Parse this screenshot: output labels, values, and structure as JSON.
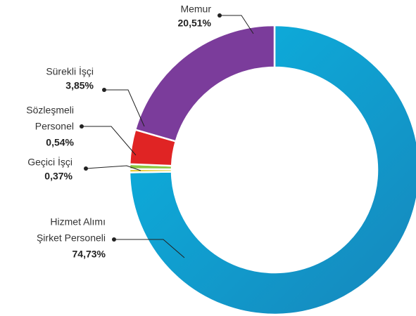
{
  "chart_data": {
    "type": "donut",
    "categories": [
      [
        "Hizmet Alımı",
        "Şirket Personeli"
      ],
      [
        "Geçici İşçi"
      ],
      [
        "Sözleşmeli",
        "Personel"
      ],
      [
        "Sürekli İşçi"
      ],
      [
        "Memur"
      ]
    ],
    "values": [
      74.73,
      0.37,
      0.54,
      3.85,
      20.51
    ],
    "value_labels": [
      "74,73%",
      "0,37%",
      "0,54%",
      "3,85%",
      "20,51%"
    ],
    "colors": [
      "#0fa6d7",
      "#e6c622",
      "#8cc63f",
      "#e02424",
      "#7b3c9b"
    ]
  }
}
